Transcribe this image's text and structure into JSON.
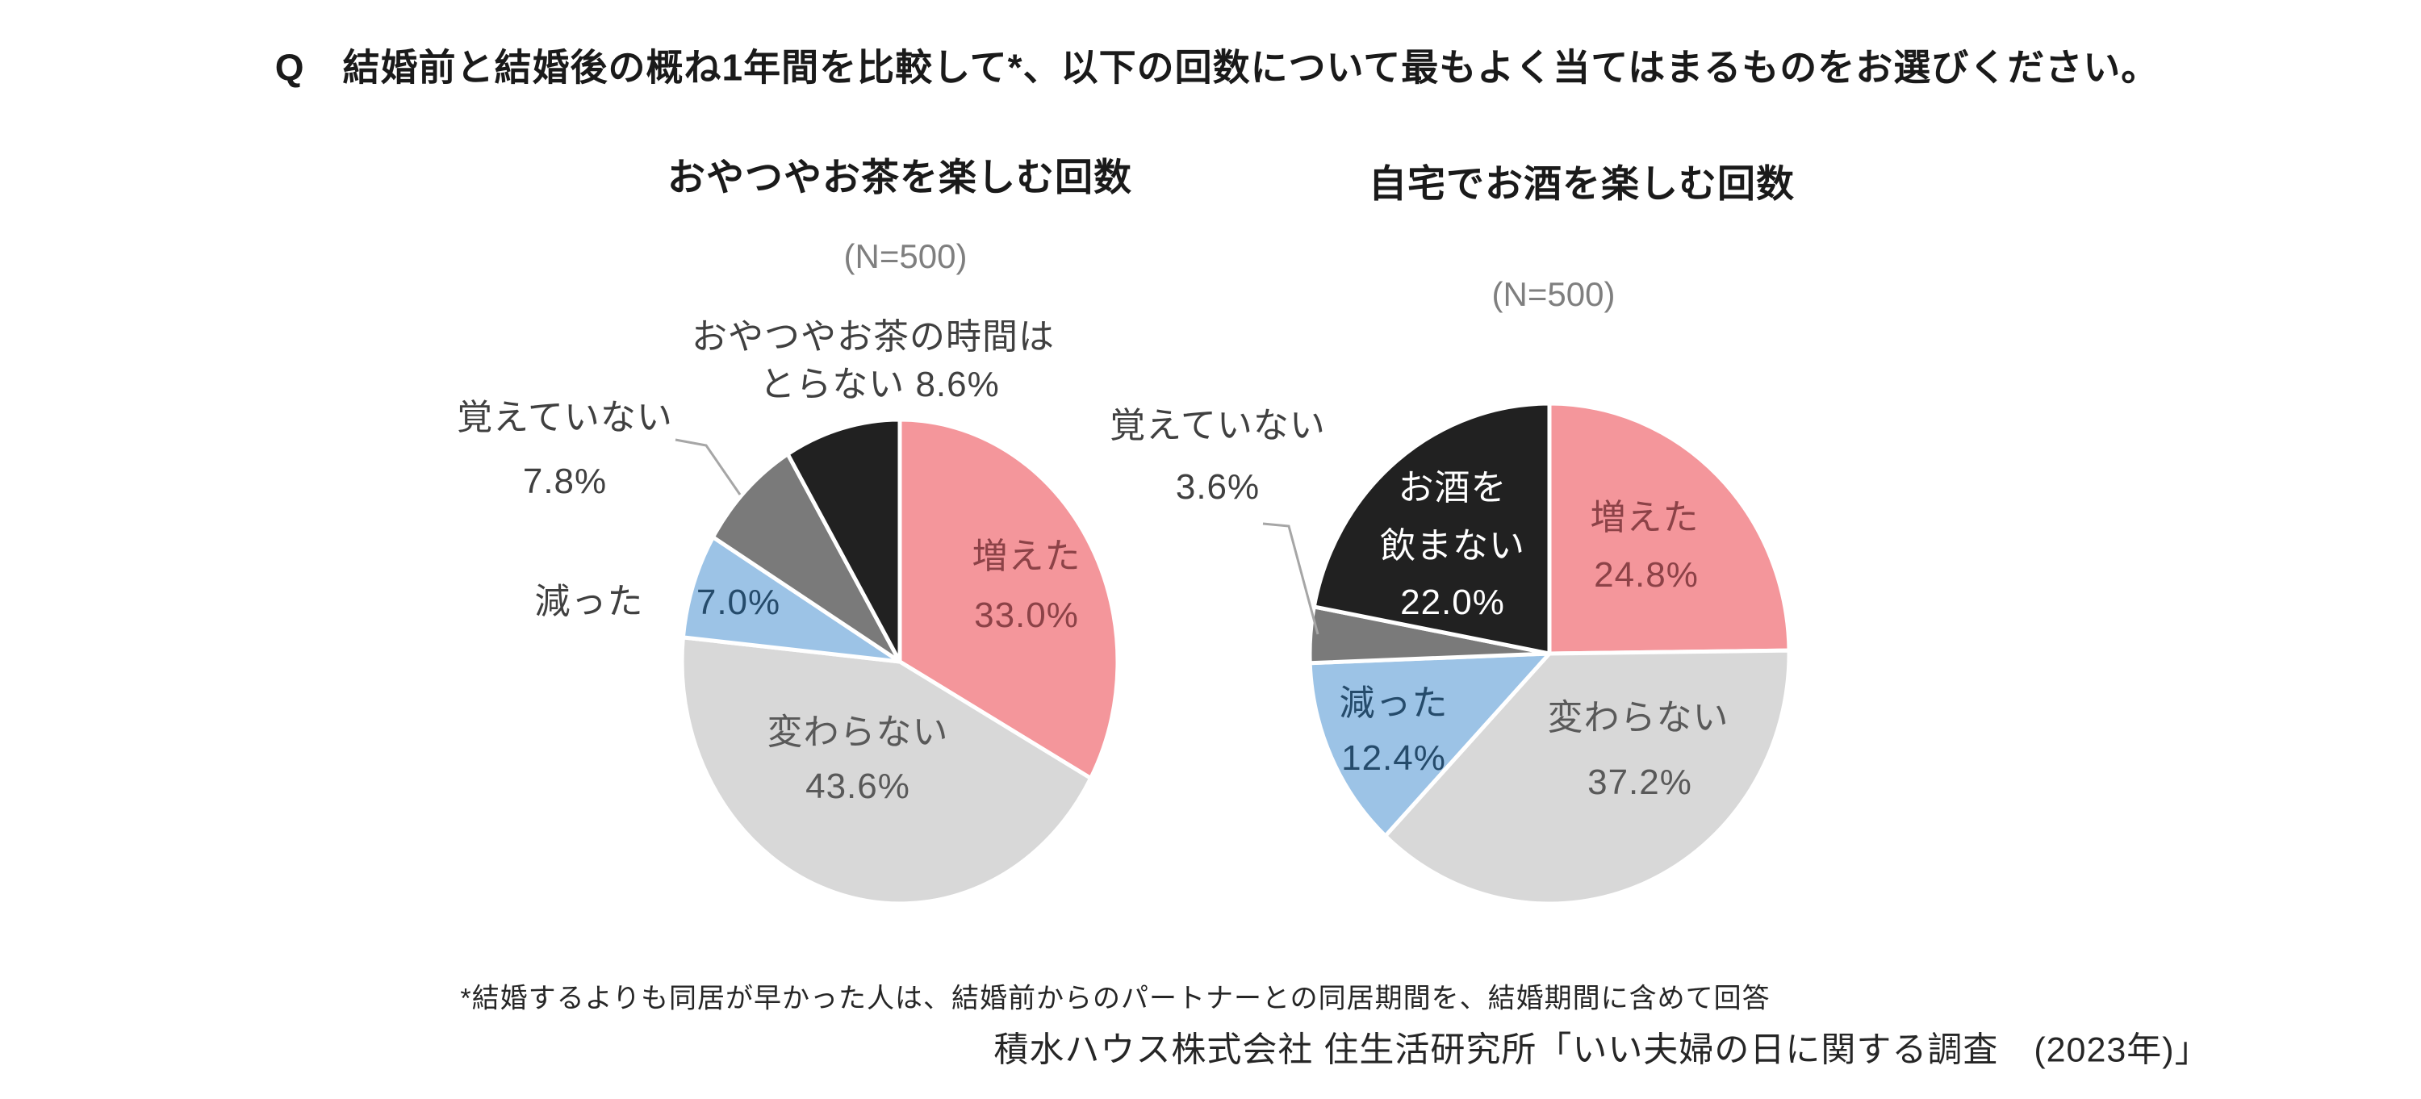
{
  "page": {
    "title": "Q　結婚前と結婚後の概ね1年間を比較して*、以下の回数について最もよく当てはまるものをお選びください。",
    "footnote": "*結婚するよりも同居が早かった人は、結婚前からのパートナーとの同居期間を、結婚期間に含めて回答",
    "source": "積水ハウス株式会社 住生活研究所「いい夫婦の日に関する調査　(2023年)」"
  },
  "palette": {
    "increase_pink": "#F4969B",
    "no_change_gray": "#D8D8D8",
    "decrease_blue": "#9CC3E6",
    "dont_remember_gray": "#7A7A7A",
    "none_black": "#212121",
    "label_maroon": "#8C4247",
    "label_dark_gray": "#595959",
    "label_navy": "#254B6B",
    "label_outside": "#404040",
    "label_white": "#FFFFFF",
    "leader_line": "#A6A6A6",
    "sample_gray": "#7F7F7F"
  },
  "chart_data": [
    {
      "type": "pie",
      "title": "おやつやお茶を楽しむ回数",
      "sample_size_label": "(N=500)",
      "start_angle_deg": 0,
      "direction": "clockwise",
      "slices": [
        {
          "label": "増えた",
          "value": 33.0,
          "color": "#F4969B"
        },
        {
          "label": "変わらない",
          "value": 43.6,
          "color": "#D8D8D8"
        },
        {
          "label": "減った",
          "value": 7.0,
          "color": "#9CC3E6"
        },
        {
          "label": "覚えていない",
          "value": 7.8,
          "color": "#7A7A7A"
        },
        {
          "label": "おやつやお茶の時間はとらない",
          "value": 8.6,
          "color": "#212121"
        }
      ],
      "labels": [
        {
          "lines": [
            "増えた",
            "33.0%"
          ],
          "color": "#8C4247"
        },
        {
          "lines": [
            "変わらない",
            "43.6%"
          ],
          "color": "#595959"
        },
        {
          "lines": [
            "7.0%"
          ],
          "color": "#254B6B"
        },
        {
          "lines": [
            "減った"
          ],
          "color": "#404040"
        },
        {
          "lines": [
            "覚えていない",
            "7.8%"
          ],
          "color": "#404040"
        },
        {
          "lines": [
            "おやつやお茶の時間は",
            "とらない 8.6%"
          ],
          "color": "#404040"
        }
      ]
    },
    {
      "type": "pie",
      "title": "自宅でお酒を楽しむ回数",
      "sample_size_label": "(N=500)",
      "start_angle_deg": 0,
      "direction": "clockwise",
      "slices": [
        {
          "label": "増えた",
          "value": 24.8,
          "color": "#F4969B"
        },
        {
          "label": "変わらない",
          "value": 37.2,
          "color": "#D8D8D8"
        },
        {
          "label": "減った",
          "value": 12.4,
          "color": "#9CC3E6"
        },
        {
          "label": "覚えていない",
          "value": 3.6,
          "color": "#7A7A7A"
        },
        {
          "label": "お酒を飲まない",
          "value": 22.0,
          "color": "#212121"
        }
      ],
      "labels": [
        {
          "lines": [
            "増えた",
            "24.8%"
          ],
          "color": "#8C4247"
        },
        {
          "lines": [
            "変わらない",
            "37.2%"
          ],
          "color": "#595959"
        },
        {
          "lines": [
            "減った",
            "12.4%"
          ],
          "color": "#254B6B"
        },
        {
          "lines": [
            "お酒を",
            "飲まない",
            "22.0%"
          ],
          "color": "#FFFFFF"
        },
        {
          "lines": [
            "覚えていない",
            "3.6%"
          ],
          "color": "#404040"
        }
      ]
    }
  ]
}
